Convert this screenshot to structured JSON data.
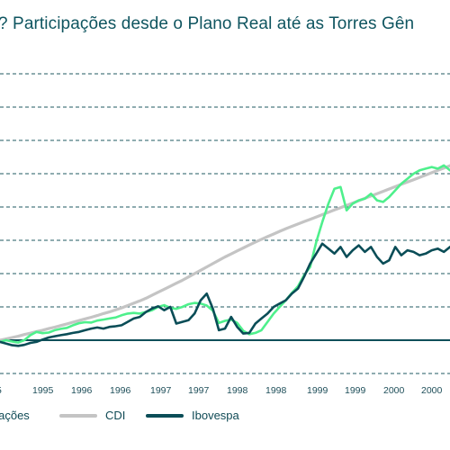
{
  "chart_data": {
    "type": "line",
    "title": "? Participações desde o Plano Real até as Torres Gên",
    "xlabel": "",
    "ylabel": "",
    "x_tick_labels": [
      "5",
      "1995",
      "1996",
      "1996",
      "1997",
      "1997",
      "1998",
      "1998",
      "1999",
      "1999",
      "2000",
      "2000"
    ],
    "grid": true,
    "legend_position": "bottom",
    "series": [
      {
        "name": "ipações",
        "color": "#4ef08c",
        "values": [
          0.95,
          1.0,
          0.96,
          0.93,
          1.0,
          1.15,
          1.25,
          1.21,
          1.23,
          1.3,
          1.34,
          1.37,
          1.45,
          1.51,
          1.54,
          1.53,
          1.59,
          1.62,
          1.65,
          1.68,
          1.75,
          1.8,
          1.82,
          1.8,
          1.85,
          1.9,
          2.0,
          2.05,
          1.97,
          1.94,
          2.0,
          2.08,
          2.12,
          2.1,
          2.04,
          1.89,
          1.52,
          1.58,
          1.62,
          1.52,
          1.28,
          1.18,
          1.22,
          1.3,
          1.55,
          1.8,
          2.0,
          2.2,
          2.42,
          2.62,
          2.95,
          3.2,
          3.95,
          4.55,
          5.1,
          5.55,
          5.6,
          4.9,
          5.1,
          5.2,
          5.25,
          5.4,
          5.2,
          5.15,
          5.3,
          5.5,
          5.7,
          5.85,
          6.0,
          6.1,
          6.15,
          6.2,
          6.15,
          6.25,
          6.1
        ]
      },
      {
        "name": "CDI",
        "color": "#c4c4c4",
        "values": [
          1.0,
          1.04,
          1.08,
          1.12,
          1.17,
          1.21,
          1.26,
          1.3,
          1.35,
          1.39,
          1.44,
          1.49,
          1.54,
          1.59,
          1.64,
          1.69,
          1.74,
          1.8,
          1.85,
          1.91,
          1.97,
          2.04,
          2.11,
          2.18,
          2.26,
          2.35,
          2.44,
          2.53,
          2.62,
          2.71,
          2.8,
          2.9,
          3.0,
          3.1,
          3.2,
          3.3,
          3.4,
          3.5,
          3.59,
          3.68,
          3.77,
          3.86,
          3.95,
          4.03,
          4.11,
          4.19,
          4.27,
          4.35,
          4.42,
          4.49,
          4.56,
          4.63,
          4.7,
          4.77,
          4.84,
          4.91,
          4.98,
          5.05,
          5.12,
          5.19,
          5.26,
          5.33,
          5.4,
          5.47,
          5.54,
          5.61,
          5.68,
          5.75,
          5.82,
          5.89,
          5.96,
          6.03,
          6.1,
          6.17,
          6.24
        ]
      },
      {
        "name": "Ibovespa",
        "color": "#0a4d57",
        "values": [
          0.95,
          0.9,
          0.85,
          0.83,
          0.86,
          0.92,
          0.95,
          1.02,
          1.08,
          1.12,
          1.15,
          1.18,
          1.22,
          1.25,
          1.3,
          1.35,
          1.38,
          1.35,
          1.4,
          1.42,
          1.45,
          1.55,
          1.65,
          1.7,
          1.85,
          1.95,
          2.02,
          1.9,
          2.0,
          1.5,
          1.55,
          1.6,
          1.8,
          2.2,
          2.4,
          1.95,
          1.3,
          1.35,
          1.7,
          1.4,
          1.2,
          1.22,
          1.5,
          1.65,
          1.8,
          2.0,
          2.1,
          2.2,
          2.4,
          2.55,
          2.9,
          3.3,
          3.6,
          3.9,
          3.75,
          3.6,
          3.8,
          3.5,
          3.7,
          3.85,
          3.65,
          3.8,
          3.5,
          3.3,
          3.4,
          3.8,
          3.55,
          3.7,
          3.65,
          3.55,
          3.6,
          3.7,
          3.75,
          3.65,
          3.8
        ]
      }
    ]
  }
}
